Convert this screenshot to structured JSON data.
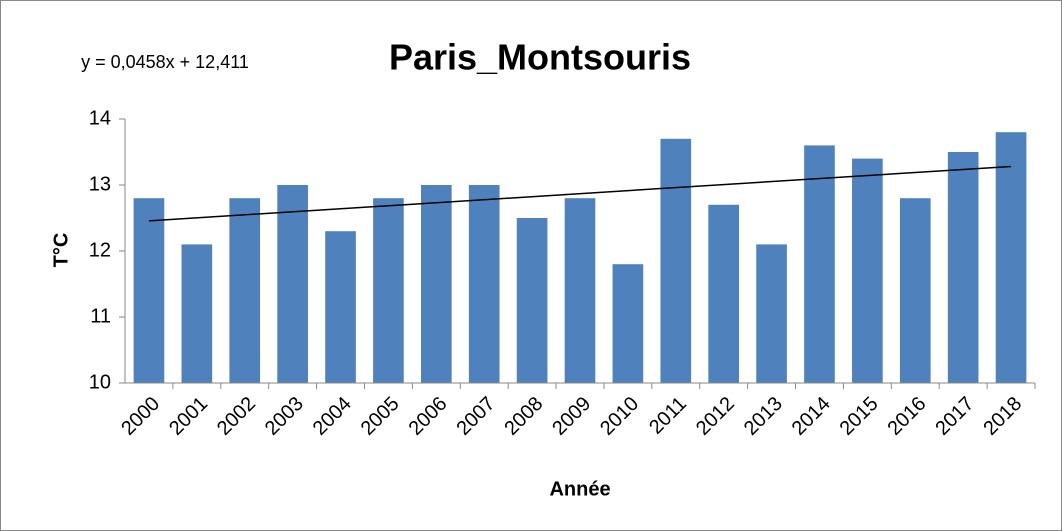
{
  "chart_data": {
    "type": "bar",
    "title": "Paris_Montsouris",
    "x_label": "Année",
    "y_label": "T°C",
    "categories": [
      "2000",
      "2001",
      "2002",
      "2003",
      "2004",
      "2005",
      "2006",
      "2007",
      "2008",
      "2009",
      "2010",
      "2011",
      "2012",
      "2013",
      "2014",
      "2015",
      "2016",
      "2017",
      "2018"
    ],
    "values": [
      12.8,
      12.1,
      12.8,
      13.0,
      12.3,
      12.8,
      13.0,
      13.0,
      12.5,
      12.8,
      11.8,
      13.7,
      12.7,
      12.1,
      13.6,
      13.4,
      12.8,
      13.5,
      13.8
    ],
    "color": "#4f81bd",
    "ylim": [
      10,
      14
    ],
    "yticks": [
      10,
      11,
      12,
      13,
      14
    ],
    "grid": false,
    "trendline": {
      "label": "y = 0,0458x + 12,411",
      "slope": 0.0458,
      "intercept": 12.411,
      "color": "#000000"
    }
  }
}
